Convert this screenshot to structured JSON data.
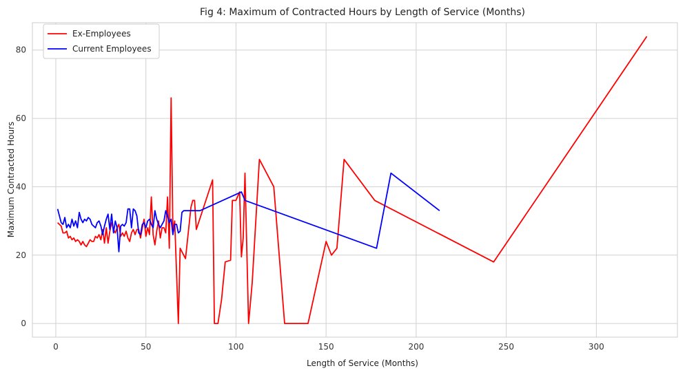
{
  "chart_data": {
    "type": "line",
    "title": "Fig 4: Maximum of Contracted Hours by Length of Service (Months)",
    "xlabel": "Length of Service (Months)",
    "ylabel": "Maximum Contracted Hours",
    "xlim": [
      -13,
      345
    ],
    "ylim": [
      -4,
      88
    ],
    "xticks": [
      0,
      50,
      100,
      150,
      200,
      250,
      300
    ],
    "yticks": [
      0,
      20,
      40,
      60,
      80
    ],
    "grid": true,
    "legend_position": "top-left",
    "series": [
      {
        "name": "Ex-Employees",
        "color": "#ff0000",
        "points": [
          [
            1,
            29.5
          ],
          [
            2,
            29
          ],
          [
            3,
            28.5
          ],
          [
            4,
            26.5
          ],
          [
            5,
            26.5
          ],
          [
            6,
            27
          ],
          [
            7,
            25
          ],
          [
            8,
            25.5
          ],
          [
            9,
            24.5
          ],
          [
            10,
            25
          ],
          [
            11,
            24
          ],
          [
            12,
            24.5
          ],
          [
            13,
            24
          ],
          [
            14,
            23
          ],
          [
            15,
            24
          ],
          [
            16,
            23
          ],
          [
            17,
            22.5
          ],
          [
            18,
            23.5
          ],
          [
            19,
            24.5
          ],
          [
            20,
            24
          ],
          [
            21,
            24
          ],
          [
            22,
            25.5
          ],
          [
            23,
            25
          ],
          [
            24,
            26
          ],
          [
            25,
            24.5
          ],
          [
            26,
            27.5
          ],
          [
            27,
            23.5
          ],
          [
            28,
            28
          ],
          [
            29,
            23.5
          ],
          [
            30,
            27
          ],
          [
            31,
            29.5
          ],
          [
            32,
            27.5
          ],
          [
            33,
            26.5
          ],
          [
            34,
            28
          ],
          [
            35,
            29
          ],
          [
            36,
            25.5
          ],
          [
            37,
            26.5
          ],
          [
            38,
            25.5
          ],
          [
            39,
            27
          ],
          [
            40,
            25
          ],
          [
            41,
            24
          ],
          [
            42,
            26.5
          ],
          [
            43,
            27.5
          ],
          [
            44,
            26
          ],
          [
            45,
            27.5
          ],
          [
            46,
            27.5
          ],
          [
            47,
            25
          ],
          [
            48,
            28
          ],
          [
            49,
            30.5
          ],
          [
            50,
            25.5
          ],
          [
            51,
            28
          ],
          [
            52,
            26
          ],
          [
            53,
            37
          ],
          [
            54,
            26
          ],
          [
            55,
            23
          ],
          [
            56,
            27
          ],
          [
            57,
            30
          ],
          [
            58,
            25
          ],
          [
            59,
            28
          ],
          [
            60,
            28
          ],
          [
            61,
            26.5
          ],
          [
            62,
            37
          ],
          [
            63,
            22
          ],
          [
            64,
            66
          ],
          [
            65,
            27
          ],
          [
            66,
            30
          ],
          [
            68,
            0
          ],
          [
            69,
            22
          ],
          [
            72,
            19
          ],
          [
            75,
            34
          ],
          [
            76,
            36
          ],
          [
            77,
            36
          ],
          [
            78,
            27.5
          ],
          [
            87,
            42
          ],
          [
            88,
            0
          ],
          [
            90,
            0
          ],
          [
            92,
            7
          ],
          [
            94,
            18
          ],
          [
            97,
            18.5
          ],
          [
            98,
            36
          ],
          [
            100,
            36
          ],
          [
            102,
            38.5
          ],
          [
            103,
            19.5
          ],
          [
            104,
            25
          ],
          [
            105,
            44
          ],
          [
            107,
            0
          ],
          [
            109,
            12
          ],
          [
            113,
            48
          ],
          [
            121,
            40
          ],
          [
            127,
            0
          ],
          [
            140,
            0
          ],
          [
            150,
            24
          ],
          [
            153,
            20
          ],
          [
            156,
            22
          ],
          [
            160,
            48
          ],
          [
            177,
            36
          ],
          [
            243,
            18
          ],
          [
            328,
            84
          ]
        ]
      },
      {
        "name": "Current Employees",
        "color": "#0000ff",
        "points": [
          [
            1,
            33.5
          ],
          [
            3,
            29.5
          ],
          [
            4,
            29
          ],
          [
            5,
            31
          ],
          [
            6,
            28
          ],
          [
            7,
            29
          ],
          [
            8,
            28
          ],
          [
            9,
            30.5
          ],
          [
            10,
            28.5
          ],
          [
            11,
            30
          ],
          [
            12,
            28
          ],
          [
            13,
            32.5
          ],
          [
            14,
            30.5
          ],
          [
            15,
            29.5
          ],
          [
            16,
            30.5
          ],
          [
            17,
            30
          ],
          [
            18,
            31
          ],
          [
            19,
            30.5
          ],
          [
            20,
            29
          ],
          [
            21,
            28.5
          ],
          [
            22,
            28
          ],
          [
            23,
            29.5
          ],
          [
            24,
            30
          ],
          [
            25,
            28.5
          ],
          [
            26,
            26
          ],
          [
            27,
            28.5
          ],
          [
            28,
            30.5
          ],
          [
            29,
            32
          ],
          [
            30,
            27.5
          ],
          [
            31,
            32
          ],
          [
            32,
            26.5
          ],
          [
            33,
            30
          ],
          [
            34,
            28
          ],
          [
            35,
            21
          ],
          [
            36,
            28.5
          ],
          [
            37,
            29
          ],
          [
            38,
            28.5
          ],
          [
            39,
            29.5
          ],
          [
            40,
            33.5
          ],
          [
            41,
            33.5
          ],
          [
            42,
            28
          ],
          [
            43,
            33.5
          ],
          [
            44,
            33
          ],
          [
            45,
            31.5
          ],
          [
            46,
            26.5
          ],
          [
            47,
            26
          ],
          [
            48,
            29
          ],
          [
            49,
            29.5
          ],
          [
            50,
            28
          ],
          [
            51,
            30
          ],
          [
            52,
            30.5
          ],
          [
            53,
            29
          ],
          [
            54,
            28
          ],
          [
            55,
            33
          ],
          [
            56,
            30.5
          ],
          [
            57,
            29
          ],
          [
            58,
            28
          ],
          [
            59,
            29
          ],
          [
            60,
            30
          ],
          [
            61,
            33
          ],
          [
            62,
            31.5
          ],
          [
            63,
            29.5
          ],
          [
            64,
            30.5
          ],
          [
            65,
            26
          ],
          [
            66,
            29
          ],
          [
            67,
            29
          ],
          [
            68,
            26.5
          ],
          [
            69,
            27
          ],
          [
            70,
            32.5
          ],
          [
            71,
            33
          ],
          [
            72,
            33
          ],
          [
            73,
            33
          ],
          [
            78,
            33
          ],
          [
            80,
            33
          ],
          [
            103,
            38.5
          ],
          [
            105,
            36
          ],
          [
            178,
            22
          ],
          [
            186,
            44
          ],
          [
            213,
            33
          ]
        ]
      }
    ]
  }
}
